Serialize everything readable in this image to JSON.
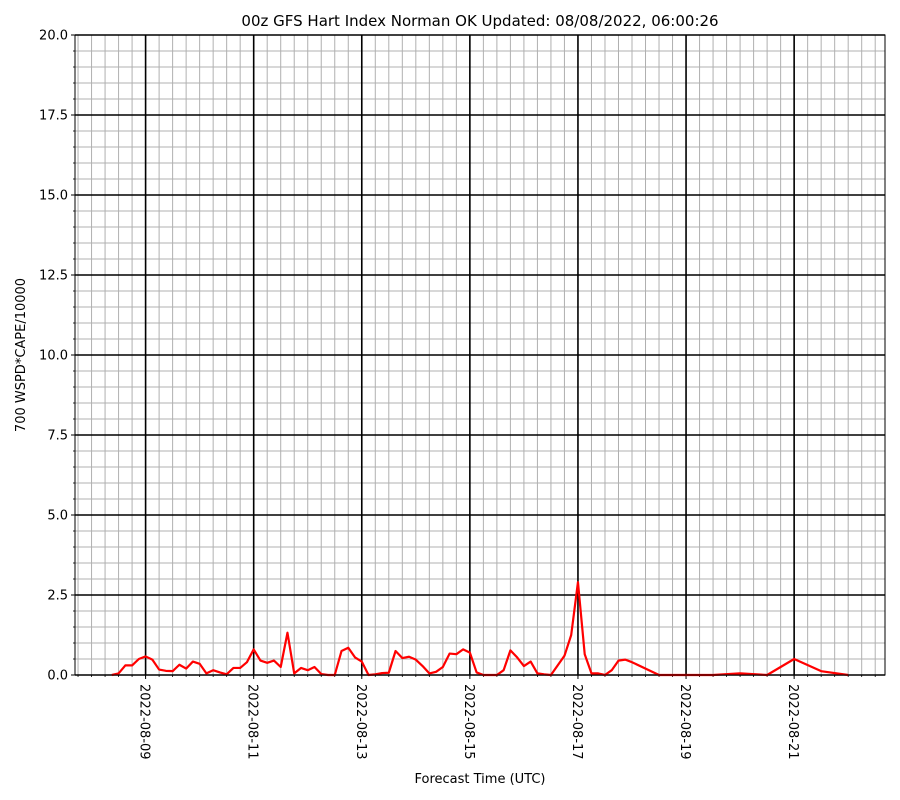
{
  "chart_data": {
    "type": "line",
    "title": "00z GFS Hart Index Norman OK Updated: 08/08/2022, 06:00:26",
    "xlabel": "Forecast Time (UTC)",
    "ylabel": "700 WSPD*CAPE/10000",
    "color": "red",
    "grid": true,
    "x": [
      "2022-08-08T09:00",
      "2022-08-08T12:00",
      "2022-08-08T15:00",
      "2022-08-08T18:00",
      "2022-08-08T21:00",
      "2022-08-09T00:00",
      "2022-08-09T03:00",
      "2022-08-09T06:00",
      "2022-08-09T09:00",
      "2022-08-09T12:00",
      "2022-08-09T15:00",
      "2022-08-09T18:00",
      "2022-08-09T21:00",
      "2022-08-10T00:00",
      "2022-08-10T03:00",
      "2022-08-10T06:00",
      "2022-08-10T09:00",
      "2022-08-10T12:00",
      "2022-08-10T15:00",
      "2022-08-10T18:00",
      "2022-08-10T21:00",
      "2022-08-11T00:00",
      "2022-08-11T03:00",
      "2022-08-11T06:00",
      "2022-08-11T09:00",
      "2022-08-11T12:00",
      "2022-08-11T15:00",
      "2022-08-11T18:00",
      "2022-08-11T21:00",
      "2022-08-12T00:00",
      "2022-08-12T03:00",
      "2022-08-12T06:00",
      "2022-08-12T09:00",
      "2022-08-12T12:00",
      "2022-08-12T15:00",
      "2022-08-12T18:00",
      "2022-08-12T21:00",
      "2022-08-13T00:00",
      "2022-08-13T03:00",
      "2022-08-13T06:00",
      "2022-08-13T09:00",
      "2022-08-13T12:00",
      "2022-08-13T15:00",
      "2022-08-13T18:00",
      "2022-08-13T21:00",
      "2022-08-14T00:00",
      "2022-08-14T03:00",
      "2022-08-14T06:00",
      "2022-08-14T09:00",
      "2022-08-14T12:00",
      "2022-08-14T15:00",
      "2022-08-14T18:00",
      "2022-08-14T21:00",
      "2022-08-15T00:00",
      "2022-08-15T03:00",
      "2022-08-15T06:00",
      "2022-08-15T09:00",
      "2022-08-15T12:00",
      "2022-08-15T15:00",
      "2022-08-15T18:00",
      "2022-08-15T21:00",
      "2022-08-16T00:00",
      "2022-08-16T03:00",
      "2022-08-16T06:00",
      "2022-08-16T09:00",
      "2022-08-16T12:00",
      "2022-08-16T15:00",
      "2022-08-16T18:00",
      "2022-08-16T21:00",
      "2022-08-17T00:00",
      "2022-08-17T03:00",
      "2022-08-17T06:00",
      "2022-08-17T09:00",
      "2022-08-17T12:00",
      "2022-08-17T15:00",
      "2022-08-17T18:00",
      "2022-08-17T21:00",
      "2022-08-18T00:00",
      "2022-08-18T12:00",
      "2022-08-19T00:00",
      "2022-08-19T12:00",
      "2022-08-20T00:00",
      "2022-08-20T12:00",
      "2022-08-21T00:00",
      "2022-08-21T12:00",
      "2022-08-22T00:00"
    ],
    "values": [
      0,
      0.05,
      0.3,
      0.3,
      0.5,
      0.58,
      0.48,
      0.17,
      0.13,
      0.12,
      0.32,
      0.2,
      0.42,
      0.35,
      0.05,
      0.15,
      0.08,
      0.02,
      0.22,
      0.22,
      0.4,
      0.8,
      0.45,
      0.38,
      0.45,
      0.25,
      1.32,
      0.05,
      0.22,
      0.15,
      0.25,
      0.03,
      0,
      0,
      0.75,
      0.85,
      0.55,
      0.42,
      0,
      0.02,
      0.06,
      0.07,
      0.75,
      0.53,
      0.57,
      0.48,
      0.28,
      0.05,
      0.1,
      0.25,
      0.67,
      0.65,
      0.8,
      0.7,
      0.08,
      0,
      0,
      0,
      0.15,
      0.77,
      0.55,
      0.28,
      0.42,
      0.05,
      0.02,
      0,
      0.3,
      0.6,
      1.25,
      2.9,
      0.65,
      0.05,
      0.05,
      0,
      0.15,
      0.45,
      0.48,
      0.4,
      0,
      0,
      0,
      0.05,
      0,
      0.5,
      0.12,
      0
    ],
    "xlim": [
      "2022-08-07T16:39",
      "2022-08-22T16:21"
    ],
    "xticks": [
      "2022-08-09",
      "2022-08-11",
      "2022-08-13",
      "2022-08-15",
      "2022-08-17",
      "2022-08-19",
      "2022-08-21"
    ],
    "ylim": [
      0,
      20
    ],
    "yticks": [
      {
        "value": 0,
        "label": "0.0"
      },
      2.5,
      {
        "value": 5,
        "label": "5.0"
      },
      7.5,
      {
        "value": 10,
        "label": "10.0"
      },
      12.5,
      {
        "value": 15,
        "label": "15.0"
      },
      17.5,
      {
        "value": 20,
        "label": "20.0"
      }
    ]
  }
}
